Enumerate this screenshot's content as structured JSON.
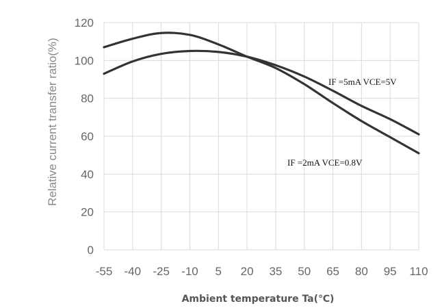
{
  "chart_data": {
    "type": "line",
    "title": "",
    "xlabel": "Ambient temperature Ta(℃)",
    "ylabel": "Relative current transfer ratio(%)",
    "categories": [
      "-55",
      "-40",
      "-25",
      "-10",
      "5",
      "20",
      "35",
      "50",
      "65",
      "80",
      "95",
      "110"
    ],
    "x": [
      -55,
      -40,
      -25,
      -10,
      5,
      20,
      35,
      50,
      65,
      80,
      95,
      110
    ],
    "xlim": [
      -55,
      110
    ],
    "ylim": [
      0,
      120
    ],
    "yticks": [
      0,
      20,
      40,
      60,
      80,
      100,
      120
    ],
    "grid": true,
    "series": [
      {
        "name": "IF =5mA VCE=5V",
        "values": [
          93,
          99.5,
          103.5,
          105,
          104.5,
          102,
          97.5,
          91.5,
          84,
          76,
          69,
          61
        ]
      },
      {
        "name": "IF =2mA VCE=0.8V",
        "values": [
          107,
          111.5,
          114.5,
          113.5,
          108.5,
          102,
          96,
          87.5,
          77.5,
          68,
          59.5,
          51
        ]
      }
    ],
    "annotations": [
      {
        "text": "IF =5mA  VCE=5V",
        "series": 0
      },
      {
        "text": "IF =2mA VCE=0.8V",
        "series": 1
      }
    ]
  }
}
